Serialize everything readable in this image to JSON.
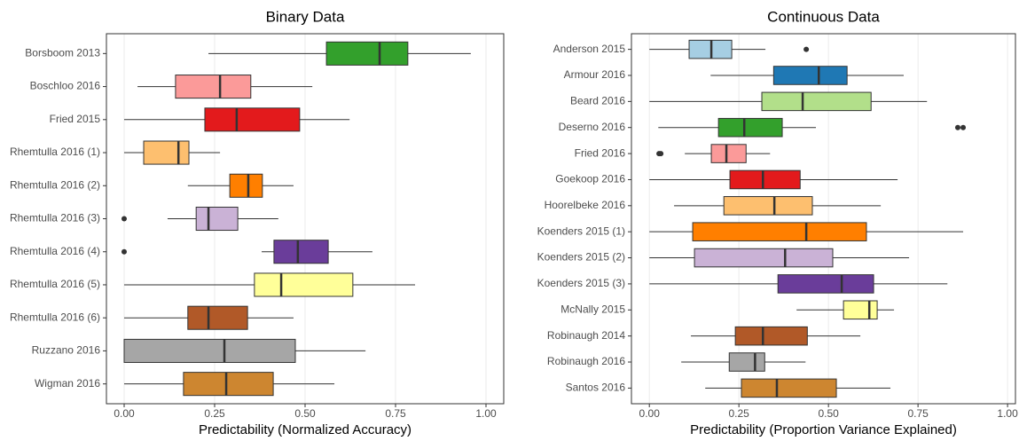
{
  "chart_data": [
    {
      "type": "boxplot",
      "title": "Binary Data",
      "x_label": "Predictability (Normalized Accuracy)",
      "xlim": [
        -0.049,
        1.049
      ],
      "xticks": [
        {
          "value": 0,
          "label": "0.00"
        },
        {
          "value": 0.25,
          "label": "0.25"
        },
        {
          "value": 0.5,
          "label": "0.50"
        },
        {
          "value": 0.75,
          "label": "0.75"
        },
        {
          "value": 1,
          "label": "1.00"
        }
      ],
      "grid": true,
      "categories": [
        "Borsboom 2013",
        "Boschloo 2016",
        "Fried 2015",
        "Rhemtulla 2016 (1)",
        "Rhemtulla 2016 (2)",
        "Rhemtulla 2016 (3)",
        "Rhemtulla 2016 (4)",
        "Rhemtulla 2016 (5)",
        "Rhemtulla 2016 (6)",
        "Ruzzano 2016",
        "Wigman 2016"
      ],
      "colors": [
        "#33a02c",
        "#fb9a99",
        "#e31a1c",
        "#fdbf6f",
        "#ff7f00",
        "#cab2d6",
        "#6a3d9a",
        "#ffff99",
        "#b15928",
        "#a6a6a6",
        "#cd8630"
      ],
      "stats": [
        {
          "low": 0.233,
          "q1": 0.559,
          "median": 0.706,
          "q3": 0.784,
          "high": 0.958,
          "outliers": []
        },
        {
          "low": 0.037,
          "q1": 0.142,
          "median": 0.265,
          "q3": 0.35,
          "high": 0.52,
          "outliers": []
        },
        {
          "low": 0,
          "q1": 0.223,
          "median": 0.311,
          "q3": 0.485,
          "high": 0.623,
          "outliers": []
        },
        {
          "low": 0,
          "q1": 0.054,
          "median": 0.15,
          "q3": 0.179,
          "high": 0.265,
          "outliers": []
        },
        {
          "low": 0.176,
          "q1": 0.292,
          "median": 0.343,
          "q3": 0.382,
          "high": 0.468,
          "outliers": []
        },
        {
          "low": 0.12,
          "q1": 0.199,
          "median": 0.233,
          "q3": 0.314,
          "high": 0.426,
          "outliers": [
            0
          ]
        },
        {
          "low": 0.38,
          "q1": 0.414,
          "median": 0.48,
          "q3": 0.564,
          "high": 0.686,
          "outliers": [
            0
          ]
        },
        {
          "low": 0,
          "q1": 0.36,
          "median": 0.434,
          "q3": 0.632,
          "high": 0.804,
          "outliers": []
        },
        {
          "low": 0,
          "q1": 0.176,
          "median": 0.233,
          "q3": 0.341,
          "high": 0.468,
          "outliers": []
        },
        {
          "low": 0,
          "q1": 0,
          "median": 0.277,
          "q3": 0.473,
          "high": 0.667,
          "outliers": []
        },
        {
          "low": 0,
          "q1": 0.164,
          "median": 0.282,
          "q3": 0.412,
          "high": 0.581,
          "outliers": []
        }
      ]
    },
    {
      "type": "boxplot",
      "title": "Continuous Data",
      "x_label": "Predictability (Proportion Variance Explained)",
      "xlim": [
        -0.05,
        1.022
      ],
      "xticks": [
        {
          "value": 0,
          "label": "0.00"
        },
        {
          "value": 0.25,
          "label": "0.25"
        },
        {
          "value": 0.5,
          "label": "0.50"
        },
        {
          "value": 0.75,
          "label": "0.75"
        },
        {
          "value": 1,
          "label": "1.00"
        }
      ],
      "grid": true,
      "categories": [
        "Anderson 2015",
        "Armour 2016",
        "Beard 2016",
        "Deserno 2016",
        "Fried 2016",
        "Goekoop 2016",
        "Hoorelbeke 2016",
        "Koenders 2015 (1)",
        "Koenders 2015 (2)",
        "Koenders 2015 (3)",
        "McNally 2015",
        "Robinaugh 2014",
        "Robinaugh 2016",
        "Santos 2016"
      ],
      "colors": [
        "#a6cee3",
        "#1f78b4",
        "#b2df8a",
        "#33a02c",
        "#fb9a99",
        "#e31a1c",
        "#fdbf6f",
        "#ff7f00",
        "#cab2d6",
        "#6a3d9a",
        "#ffff99",
        "#b15928",
        "#a6a6a6",
        "#cd8630"
      ],
      "stats": [
        {
          "low": 0,
          "q1": 0.111,
          "median": 0.173,
          "q3": 0.23,
          "high": 0.324,
          "outliers": [
            0.438
          ]
        },
        {
          "low": 0.171,
          "q1": 0.347,
          "median": 0.473,
          "q3": 0.552,
          "high": 0.71,
          "outliers": []
        },
        {
          "low": 0,
          "q1": 0.314,
          "median": 0.428,
          "q3": 0.619,
          "high": 0.775,
          "outliers": []
        },
        {
          "low": 0.025,
          "q1": 0.193,
          "median": 0.265,
          "q3": 0.371,
          "high": 0.465,
          "outliers": [
            0.861,
            0.876
          ]
        },
        {
          "low": 0.099,
          "q1": 0.173,
          "median": 0.215,
          "q3": 0.27,
          "high": 0.337,
          "outliers": [
            0.027,
            0.032
          ]
        },
        {
          "low": 0,
          "q1": 0.225,
          "median": 0.317,
          "q3": 0.421,
          "high": 0.693,
          "outliers": []
        },
        {
          "low": 0.069,
          "q1": 0.208,
          "median": 0.349,
          "q3": 0.455,
          "high": 0.646,
          "outliers": []
        },
        {
          "low": 0,
          "q1": 0.121,
          "median": 0.438,
          "q3": 0.606,
          "high": 0.876,
          "outliers": []
        },
        {
          "low": 0,
          "q1": 0.126,
          "median": 0.379,
          "q3": 0.512,
          "high": 0.725,
          "outliers": []
        },
        {
          "low": 0,
          "q1": 0.359,
          "median": 0.537,
          "q3": 0.626,
          "high": 0.832,
          "outliers": []
        },
        {
          "low": 0.411,
          "q1": 0.542,
          "median": 0.614,
          "q3": 0.636,
          "high": 0.683,
          "outliers": []
        },
        {
          "low": 0.116,
          "q1": 0.24,
          "median": 0.317,
          "q3": 0.441,
          "high": 0.589,
          "outliers": []
        },
        {
          "low": 0.089,
          "q1": 0.223,
          "median": 0.295,
          "q3": 0.322,
          "high": 0.436,
          "outliers": []
        },
        {
          "low": 0.156,
          "q1": 0.257,
          "median": 0.356,
          "q3": 0.522,
          "high": 0.673,
          "outliers": []
        }
      ]
    }
  ]
}
